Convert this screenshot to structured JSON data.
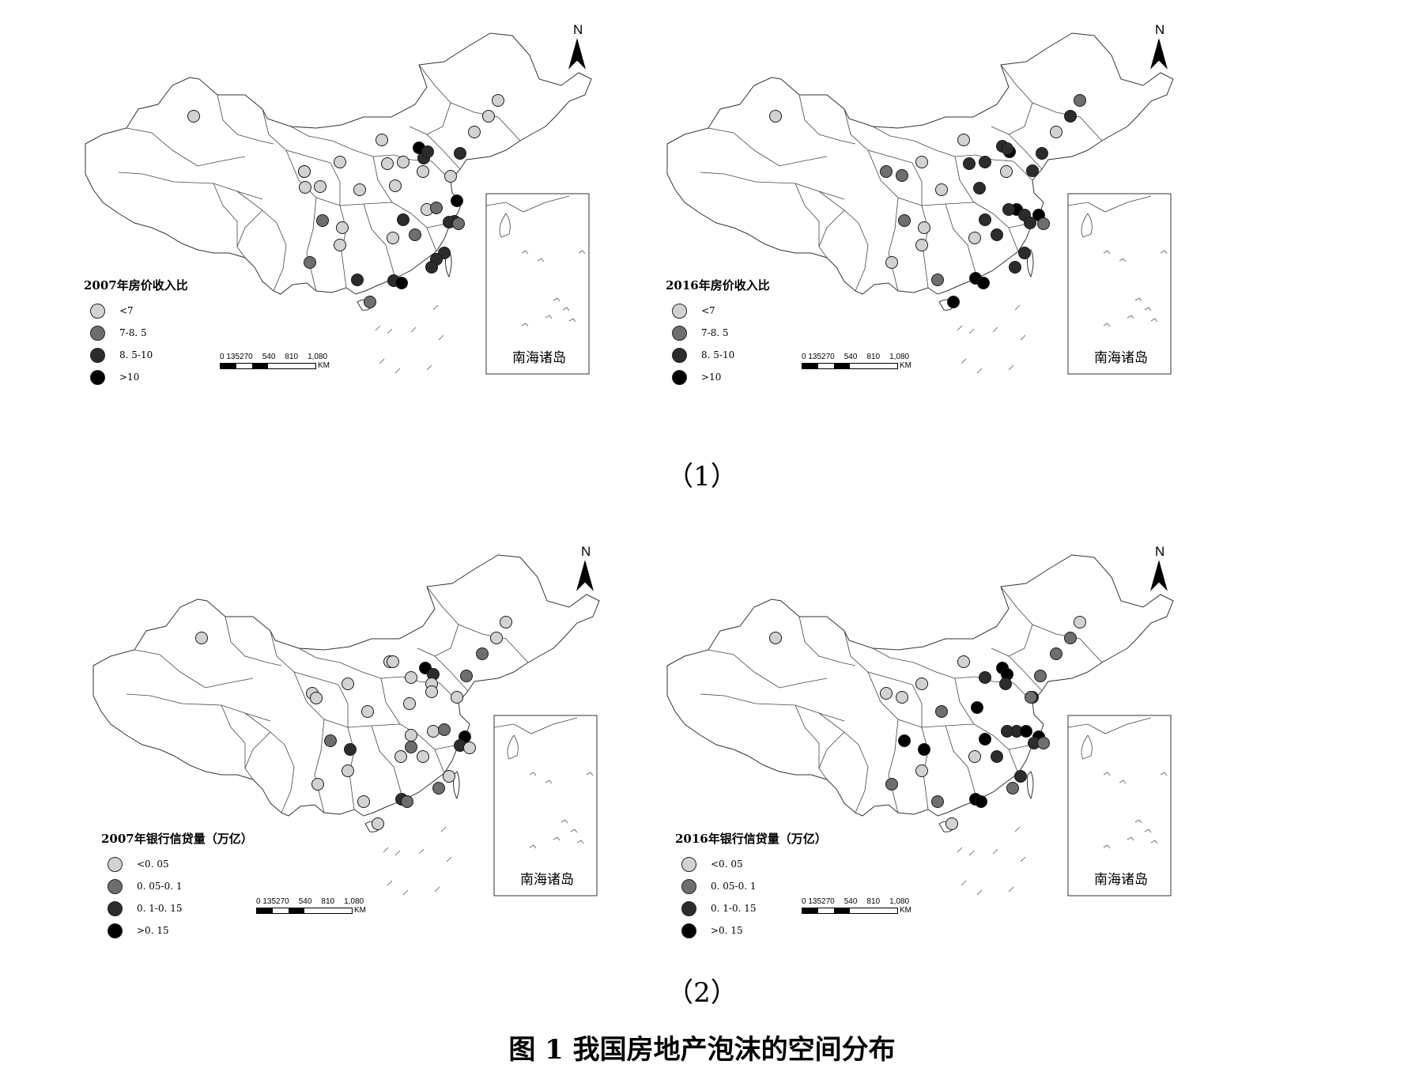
{
  "figure": {
    "caption": "图 1  我国房地产泡沫的空间分布",
    "row_labels": [
      "（1）",
      "（2）"
    ]
  },
  "colors": {
    "class_1": "#d2d2d2",
    "class_2": "#6e6e6e",
    "class_3": "#2c2c2c",
    "class_4": "#000000",
    "outline": "#333333"
  },
  "panels": [
    {
      "id": "hp_2007",
      "legend_title": "2007年房价收入比",
      "legend": [
        "<7",
        "7-8. 5",
        "8. 5-10",
        ">10"
      ],
      "north": "N",
      "scale_ticks": [
        "0 135270",
        "540",
        "810",
        "1,080"
      ],
      "scale_unit": "KM",
      "inset_label": "南海诸岛"
    },
    {
      "id": "hp_2016",
      "legend_title": "2016年房价收入比",
      "legend": [
        "<7",
        "7-8. 5",
        "8. 5-10",
        ">10"
      ],
      "north": "N",
      "scale_ticks": [
        "0 135270",
        "540",
        "810",
        "1,080"
      ],
      "scale_unit": "KM",
      "inset_label": "南海诸岛"
    },
    {
      "id": "loan_2007",
      "legend_title": "2007年银行信贷量（万亿）",
      "legend": [
        "<0. 05",
        "0. 05-0. 1",
        "0. 1-0. 15",
        ">0. 15"
      ],
      "north": "N",
      "scale_ticks": [
        "0 135270",
        "540",
        "810",
        "1,080"
      ],
      "scale_unit": "KM",
      "inset_label": "南海诸岛"
    },
    {
      "id": "loan_2016",
      "legend_title": "2016年银行信贷量（万亿）",
      "legend": [
        "<0. 05",
        "0. 05-0. 1",
        "0. 1-0. 15",
        ">0. 15"
      ],
      "north": "N",
      "scale_ticks": [
        "0 135270",
        "540",
        "810",
        "1,080"
      ],
      "scale_unit": "KM",
      "inset_label": "南海诸岛"
    }
  ]
}
